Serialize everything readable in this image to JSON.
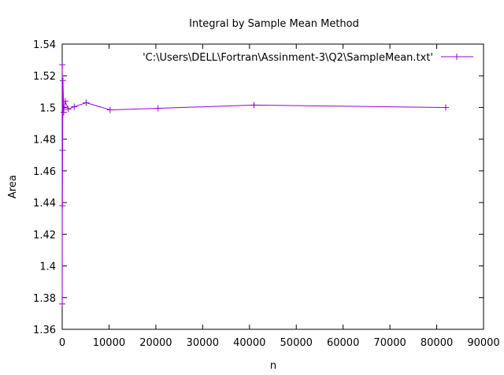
{
  "chart_data": {
    "type": "line",
    "title": "Integral by Sample Mean Method",
    "xlabel": "n",
    "ylabel": "Area",
    "xlim": [
      0,
      90000
    ],
    "ylim": [
      1.36,
      1.54
    ],
    "xticks": [
      0,
      10000,
      20000,
      30000,
      40000,
      50000,
      60000,
      70000,
      80000,
      90000
    ],
    "yticks": [
      1.36,
      1.38,
      1.4,
      1.42,
      1.44,
      1.46,
      1.48,
      1.5,
      1.52,
      1.54
    ],
    "xtick_labels": [
      "0",
      "10000",
      "20000",
      "30000",
      "40000",
      "50000",
      "60000",
      "70000",
      "80000",
      "90000"
    ],
    "ytick_labels": [
      "1.36",
      "1.38",
      "1.4",
      "1.42",
      "1.44",
      "1.46",
      "1.48",
      "1.5",
      "1.52",
      "1.54"
    ],
    "grid": false,
    "legend_position": "top-right",
    "series": [
      {
        "name": "'C:\\Users\\DELL\\Fortran\\Assinment-3\\Q2\\SampleMean.txt'",
        "color": "#9400d3",
        "marker": "plus",
        "x": [
          10,
          20,
          40,
          80,
          160,
          320,
          640,
          1280,
          2560,
          5120,
          10240,
          20480,
          40960,
          81920
        ],
        "y": [
          1.376,
          1.527,
          1.438,
          1.473,
          1.517,
          1.497,
          1.504,
          1.499,
          1.5005,
          1.503,
          1.4985,
          1.4995,
          1.5015,
          1.5
        ]
      }
    ]
  }
}
